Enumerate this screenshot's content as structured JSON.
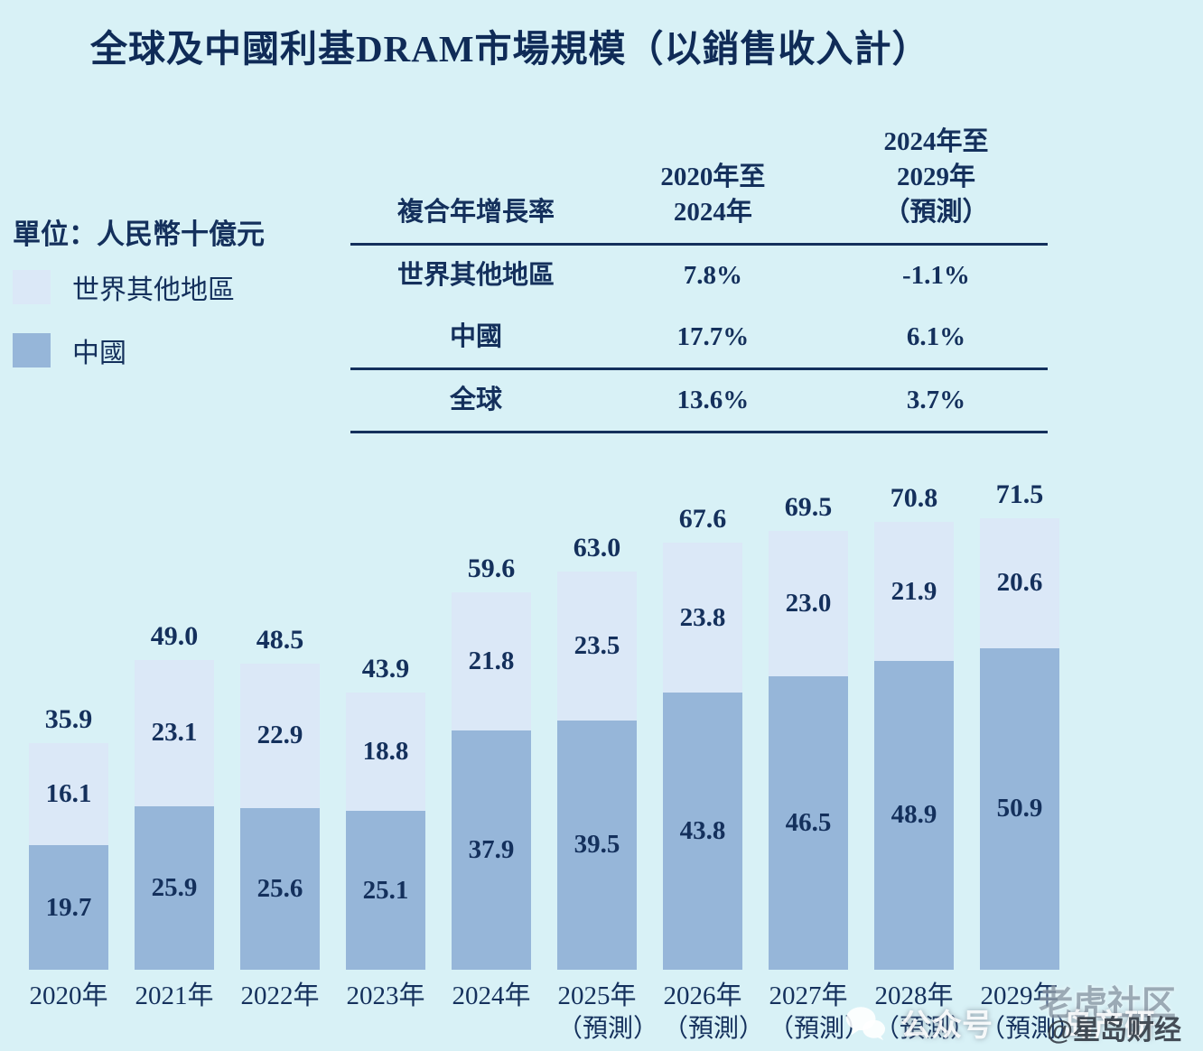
{
  "title": "全球及中國利基DRAM市場規模（以銷售收入計）",
  "legend": {
    "unit_label": "單位：人民幣十億元",
    "items": [
      {
        "label": "世界其他地區",
        "color": "#dbe8f7"
      },
      {
        "label": "中國",
        "color": "#96b6d9"
      }
    ]
  },
  "cagr_table": {
    "header": {
      "row_label": "複合年增長率",
      "col1": "2020年至\n2024年",
      "col2": "2024年至\n2029年\n（預測）"
    },
    "rows": [
      {
        "label": "世界其他地區",
        "c1": "7.8%",
        "c2": "-1.1%"
      },
      {
        "label": "中國",
        "c1": "17.7%",
        "c2": "6.1%"
      },
      {
        "label": "全球",
        "c1": "13.6%",
        "c2": "3.7%"
      }
    ]
  },
  "chart_data": {
    "type": "bar",
    "stacked": true,
    "title": "全球及中國利基DRAM市場規模（以銷售收入計）",
    "unit": "人民幣十億元",
    "categories": [
      {
        "year": "2020年",
        "note": ""
      },
      {
        "year": "2021年",
        "note": ""
      },
      {
        "year": "2022年",
        "note": ""
      },
      {
        "year": "2023年",
        "note": ""
      },
      {
        "year": "2024年",
        "note": ""
      },
      {
        "year": "2025年",
        "note": "（預測）"
      },
      {
        "year": "2026年",
        "note": "（預測）"
      },
      {
        "year": "2027年",
        "note": "（預測）"
      },
      {
        "year": "2028年",
        "note": "（預測）"
      },
      {
        "year": "2029年",
        "note": "（預測）"
      }
    ],
    "series": [
      {
        "name": "中國",
        "color": "#96b6d9",
        "values": [
          19.7,
          25.9,
          25.6,
          25.1,
          37.9,
          39.5,
          43.8,
          46.5,
          48.9,
          50.9
        ]
      },
      {
        "name": "世界其他地區",
        "color": "#dbe8f7",
        "values": [
          16.1,
          23.1,
          22.9,
          18.8,
          21.8,
          23.5,
          23.8,
          23.0,
          21.9,
          20.6
        ]
      }
    ],
    "totals": [
      35.9,
      49.0,
      48.5,
      43.9,
      59.6,
      63.0,
      67.6,
      69.5,
      70.8,
      71.5
    ],
    "ylim": [
      0,
      75
    ],
    "legend_position": "left",
    "grid": false
  },
  "watermarks": {
    "community": "老虎社区",
    "wechat_label": "公众号",
    "wechat_name": "岛产研",
    "credit": "@星岛财经"
  }
}
